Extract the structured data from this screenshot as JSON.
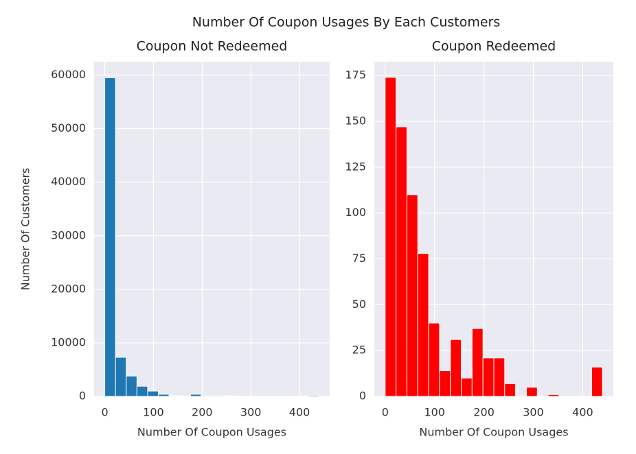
{
  "title": "Number Of Coupon Usages By Each Customers",
  "chart_data": [
    {
      "type": "histogram",
      "title": "Coupon Not Redeemed",
      "xlabel": "Number Of Coupon Usages",
      "ylabel": "Number Of Customers",
      "bins": [
        0,
        22,
        44,
        66,
        88,
        110,
        132,
        154,
        176,
        198,
        220,
        242,
        264,
        286,
        308,
        330,
        352,
        374,
        396,
        418,
        440
      ],
      "values": [
        59500,
        7300,
        3800,
        1900,
        1000,
        400,
        150,
        100,
        400,
        150,
        150,
        100,
        50,
        50,
        30,
        20,
        20,
        20,
        20,
        200
      ],
      "color": "#1f77b4",
      "xlim": [
        -22,
        462
      ],
      "xticks": [
        0,
        100,
        200,
        300,
        400
      ],
      "ylim": [
        0,
        62500
      ],
      "yticks": [
        0,
        10000,
        20000,
        30000,
        40000,
        50000,
        60000
      ],
      "grid": true
    },
    {
      "type": "histogram",
      "title": "Coupon Redeemed",
      "xlabel": "Number Of Coupon Usages",
      "bins": [
        0,
        22,
        44,
        66,
        88,
        110,
        132,
        154,
        176,
        198,
        220,
        242,
        264,
        286,
        308,
        330,
        352,
        374,
        396,
        418,
        440
      ],
      "values": [
        174,
        147,
        110,
        78,
        40,
        14,
        31,
        10,
        37,
        21,
        21,
        7,
        0,
        5,
        0,
        1,
        0,
        0,
        0,
        16
      ],
      "color": "#ff0000",
      "xlim": [
        -22,
        462
      ],
      "xticks": [
        0,
        100,
        200,
        300,
        400
      ],
      "ylim": [
        0,
        182.5
      ],
      "yticks": [
        0,
        25,
        50,
        75,
        100,
        125,
        150,
        175
      ],
      "grid": true
    }
  ]
}
